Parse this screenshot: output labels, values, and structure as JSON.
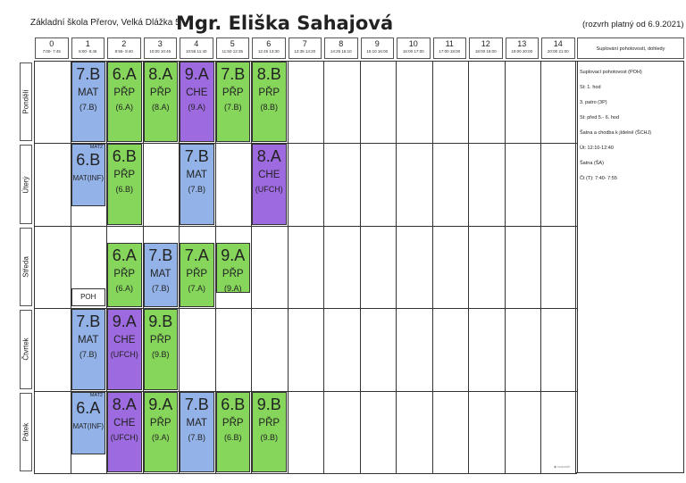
{
  "header": {
    "school": "Základní škola Přerov, Velká Dlážka 5",
    "teacher": "Mgr. Eliška Sahajová",
    "validity": "(rozvrh platný od 6.9.2021)"
  },
  "periods": [
    {
      "num": "0",
      "time": "7:00- 7:45"
    },
    {
      "num": "1",
      "time": "8:00- 8:45"
    },
    {
      "num": "2",
      "time": "8:55- 9:40"
    },
    {
      "num": "3",
      "time": "10:00 10:45"
    },
    {
      "num": "4",
      "time": "10:55 11:40"
    },
    {
      "num": "5",
      "time": "11:50 12:35"
    },
    {
      "num": "6",
      "time": "12:45 13:30"
    },
    {
      "num": "7",
      "time": "13:35 14:20"
    },
    {
      "num": "8",
      "time": "14:25 15:10"
    },
    {
      "num": "9",
      "time": "15:10 16:00"
    },
    {
      "num": "10",
      "time": "16:00 17:00"
    },
    {
      "num": "11",
      "time": "17:00 18:00"
    },
    {
      "num": "12",
      "time": "18:00 19:00"
    },
    {
      "num": "13",
      "time": "19:00 20:00"
    },
    {
      "num": "14",
      "time": "20:00 21:00"
    }
  ],
  "side_header": "Suplování pohotovostí, dohledy",
  "days": [
    "Pondělí",
    "Úterý",
    "Středa",
    "Čtvrtek",
    "Pátek"
  ],
  "colors": {
    "purple": "#9e6ae0",
    "blue": "#93b3e8",
    "green": "#86d65c"
  },
  "lessons": [
    {
      "day": 0,
      "period": 1,
      "cls": "7.B",
      "subject": "MAT",
      "group": "(7.B)",
      "color": "blue"
    },
    {
      "day": 0,
      "period": 2,
      "cls": "6.A",
      "subject": "PŘP",
      "group": "(6.A)",
      "color": "green"
    },
    {
      "day": 0,
      "period": 3,
      "cls": "8.A",
      "subject": "PŘP",
      "group": "(8.A)",
      "color": "green"
    },
    {
      "day": 0,
      "period": 4,
      "cls": "9.A",
      "subject": "CHE",
      "group": "(9.A)",
      "color": "purple"
    },
    {
      "day": 0,
      "period": 5,
      "cls": "7.B",
      "subject": "PŘP",
      "group": "(7.B)",
      "color": "green"
    },
    {
      "day": 0,
      "period": 6,
      "cls": "8.B",
      "subject": "PŘP",
      "group": "(8.B)",
      "color": "green"
    },
    {
      "day": 1,
      "period": 1,
      "cls": "6.B",
      "subject": "MAT(INF)",
      "group": "",
      "small": "MAT2",
      "color": "blue",
      "half": true
    },
    {
      "day": 1,
      "period": 2,
      "cls": "6.B",
      "subject": "PŘP",
      "group": "(6.B)",
      "color": "green"
    },
    {
      "day": 1,
      "period": 4,
      "cls": "7.B",
      "subject": "MAT",
      "group": "(7.B)",
      "color": "blue"
    },
    {
      "day": 1,
      "period": 6,
      "cls": "8.A",
      "subject": "CHE",
      "group": "(UFCH)",
      "color": "purple"
    },
    {
      "day": 2,
      "period": 2,
      "cls": "6.A",
      "subject": "PŘP",
      "group": "(6.A)",
      "color": "green",
      "low": true
    },
    {
      "day": 2,
      "period": 3,
      "cls": "7.B",
      "subject": "MAT",
      "group": "(7.B)",
      "color": "blue",
      "low": true
    },
    {
      "day": 2,
      "period": 4,
      "cls": "7.A",
      "subject": "PŘP",
      "group": "(7.A)",
      "color": "green",
      "low": true
    },
    {
      "day": 2,
      "period": 5,
      "cls": "9.A",
      "subject": "PŘP",
      "group": "(9.A)",
      "color": "green",
      "low": true,
      "short": true
    },
    {
      "day": 3,
      "period": 1,
      "cls": "7.B",
      "subject": "MAT",
      "group": "(7.B)",
      "color": "blue"
    },
    {
      "day": 3,
      "period": 2,
      "cls": "9.A",
      "subject": "CHE",
      "group": "(UFCH)",
      "color": "purple"
    },
    {
      "day": 3,
      "period": 3,
      "cls": "9.B",
      "subject": "PŘP",
      "group": "(9.B)",
      "color": "green"
    },
    {
      "day": 4,
      "period": 1,
      "cls": "6.A",
      "subject": "MAT(INF)",
      "group": "",
      "small": "MAT2",
      "color": "blue",
      "half": true
    },
    {
      "day": 4,
      "period": 2,
      "cls": "8.A",
      "subject": "CHE",
      "group": "(UFCH)",
      "color": "purple"
    },
    {
      "day": 4,
      "period": 3,
      "cls": "9.A",
      "subject": "PŘP",
      "group": "(9.A)",
      "color": "green"
    },
    {
      "day": 4,
      "period": 4,
      "cls": "7.B",
      "subject": "MAT",
      "group": "(7.B)",
      "color": "blue"
    },
    {
      "day": 4,
      "period": 5,
      "cls": "6.B",
      "subject": "PŘP",
      "group": "(6.B)",
      "color": "green"
    },
    {
      "day": 4,
      "period": 6,
      "cls": "9.B",
      "subject": "PŘP",
      "group": "(9.B)",
      "color": "green"
    }
  ],
  "duties": [
    {
      "day": 2,
      "period": 1,
      "label": "POH"
    }
  ],
  "side_notes": [
    {
      "text": "Suplovací pohotovost (POH)",
      "u": true
    },
    {
      "text": "St: 1. hod",
      "u": false
    },
    {
      "text": "3. patro (3P)",
      "u": true
    },
    {
      "text": "St: před 5.- 6. hod",
      "u": false
    },
    {
      "text": "Šatna a chodba k jídelně (ŠCHJ)",
      "u": true
    },
    {
      "text": "Út: 12:10-12:40",
      "u": false
    },
    {
      "text": "Šatna (ŠA)",
      "u": true
    },
    {
      "text": "Čt (T):  7:40- 7:55",
      "u": false
    }
  ]
}
